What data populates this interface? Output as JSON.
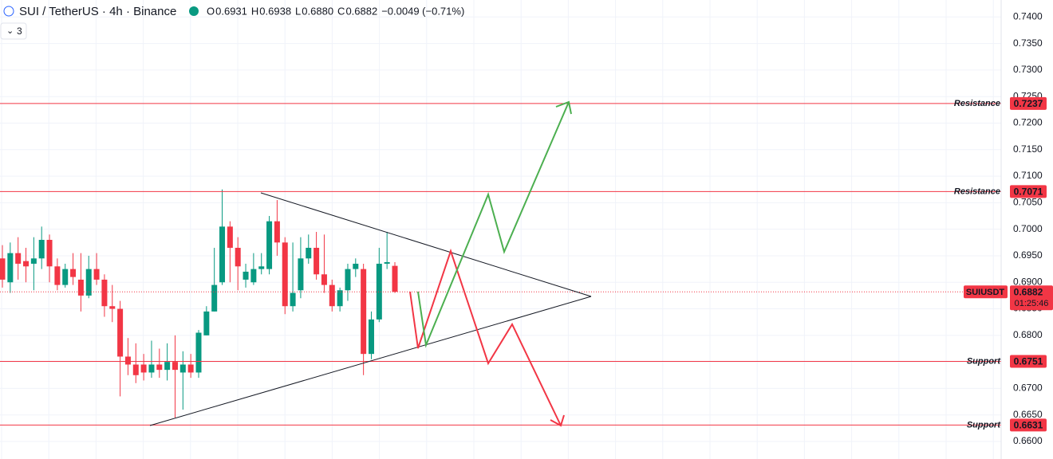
{
  "chart_data": {
    "type": "candlestick",
    "title": "SUI / TetherUS · 4h · Binance",
    "ohlc_legend": [
      {
        "key": "O",
        "value": "0.6931"
      },
      {
        "key": "H",
        "value": "0.6938"
      },
      {
        "key": "L",
        "value": "0.6880"
      },
      {
        "key": "C",
        "value": "0.6882"
      }
    ],
    "change": "−0.0049 (−0.71%)",
    "indicator_count": "3",
    "up_color": "#089981",
    "down_color": "#f23645",
    "open": [
      0.6945,
      0.69,
      0.6955,
      0.694,
      0.6935,
      0.6945,
      0.698,
      0.693,
      0.6895,
      0.6925,
      0.6905,
      0.6875,
      0.6925,
      0.6905,
      0.6855,
      0.685,
      0.676,
      0.6745,
      0.6745,
      0.673,
      0.6745,
      0.6735,
      0.675,
      0.673,
      0.6745,
      0.673,
      0.68,
      0.6845,
      0.69,
      0.7005,
      0.6965,
      0.6905,
      0.69,
      0.6925,
      0.6925,
      0.7015,
      0.6975,
      0.6855,
      0.6885,
      0.6945,
      0.6965,
      0.6915,
      0.6895,
      0.6855,
      0.6885,
      0.6925,
      0.6925,
      0.6765,
      0.683,
      0.6935,
      0.6931
    ],
    "high": [
      0.697,
      0.6975,
      0.6985,
      0.6965,
      0.6985,
      0.7005,
      0.699,
      0.6945,
      0.6935,
      0.6955,
      0.6955,
      0.695,
      0.6955,
      0.6915,
      0.6895,
      0.6865,
      0.6795,
      0.6785,
      0.6765,
      0.679,
      0.6775,
      0.6785,
      0.68,
      0.677,
      0.6765,
      0.681,
      0.6855,
      0.6965,
      0.7075,
      0.7015,
      0.6985,
      0.6935,
      0.6955,
      0.6955,
      0.7025,
      0.7055,
      0.6985,
      0.6975,
      0.6985,
      0.699,
      0.6995,
      0.699,
      0.6905,
      0.689,
      0.6935,
      0.6945,
      0.6935,
      0.6845,
      0.6965,
      0.6995,
      0.6938
    ],
    "low": [
      0.689,
      0.688,
      0.6905,
      0.69,
      0.6885,
      0.6925,
      0.69,
      0.6885,
      0.689,
      0.6895,
      0.6845,
      0.687,
      0.6895,
      0.6835,
      0.6825,
      0.6685,
      0.6725,
      0.671,
      0.6715,
      0.672,
      0.672,
      0.6715,
      0.6645,
      0.666,
      0.672,
      0.672,
      0.68,
      0.6845,
      0.6895,
      0.69,
      0.6885,
      0.689,
      0.6895,
      0.6915,
      0.6915,
      0.695,
      0.684,
      0.6845,
      0.687,
      0.6935,
      0.6905,
      0.688,
      0.6845,
      0.6845,
      0.6865,
      0.691,
      0.6725,
      0.6755,
      0.6825,
      0.6925,
      0.688
    ],
    "close": [
      0.6905,
      0.6955,
      0.6935,
      0.693,
      0.6945,
      0.698,
      0.693,
      0.6895,
      0.6925,
      0.691,
      0.6875,
      0.6925,
      0.6905,
      0.6855,
      0.685,
      0.676,
      0.6745,
      0.6725,
      0.673,
      0.6745,
      0.6735,
      0.675,
      0.6735,
      0.6745,
      0.673,
      0.6805,
      0.6845,
      0.6895,
      0.7005,
      0.6965,
      0.693,
      0.692,
      0.6925,
      0.693,
      0.7015,
      0.6975,
      0.6855,
      0.688,
      0.6945,
      0.6965,
      0.6915,
      0.6895,
      0.6855,
      0.6885,
      0.6925,
      0.6935,
      0.6765,
      0.683,
      0.6935,
      0.6938,
      0.6882
    ],
    "ylim": [
      0.6567,
      0.7432
    ],
    "yticks": [
      {
        "value": 0.66,
        "label": "0.6600"
      },
      {
        "value": 0.665,
        "label": "0.6650"
      },
      {
        "value": 0.67,
        "label": "0.6700"
      },
      {
        "value": 0.675,
        "label": "0.6750"
      },
      {
        "value": 0.68,
        "label": "0.6800"
      },
      {
        "value": 0.685,
        "label": "0.6850"
      },
      {
        "value": 0.69,
        "label": "0.6900"
      },
      {
        "value": 0.695,
        "label": "0.6950"
      },
      {
        "value": 0.7,
        "label": "0.7000"
      },
      {
        "value": 0.705,
        "label": "0.7050"
      },
      {
        "value": 0.71,
        "label": "0.7100"
      },
      {
        "value": 0.715,
        "label": "0.7150"
      },
      {
        "value": 0.72,
        "label": "0.7200"
      },
      {
        "value": 0.725,
        "label": "0.7250"
      },
      {
        "value": 0.73,
        "label": "0.7300"
      },
      {
        "value": 0.735,
        "label": "0.7350"
      },
      {
        "value": 0.74,
        "label": "0.7400"
      }
    ],
    "levels": [
      {
        "label": "Resistance",
        "value": 0.7237
      },
      {
        "label": "Resistance",
        "value": 0.7071
      },
      {
        "label": "Support",
        "value": 0.6751
      },
      {
        "label": "Support",
        "value": 0.6631
      }
    ],
    "last_price": {
      "symbol": "SUIUSDT",
      "value": 0.6882,
      "countdown": "01:25:46"
    },
    "grid": true
  }
}
